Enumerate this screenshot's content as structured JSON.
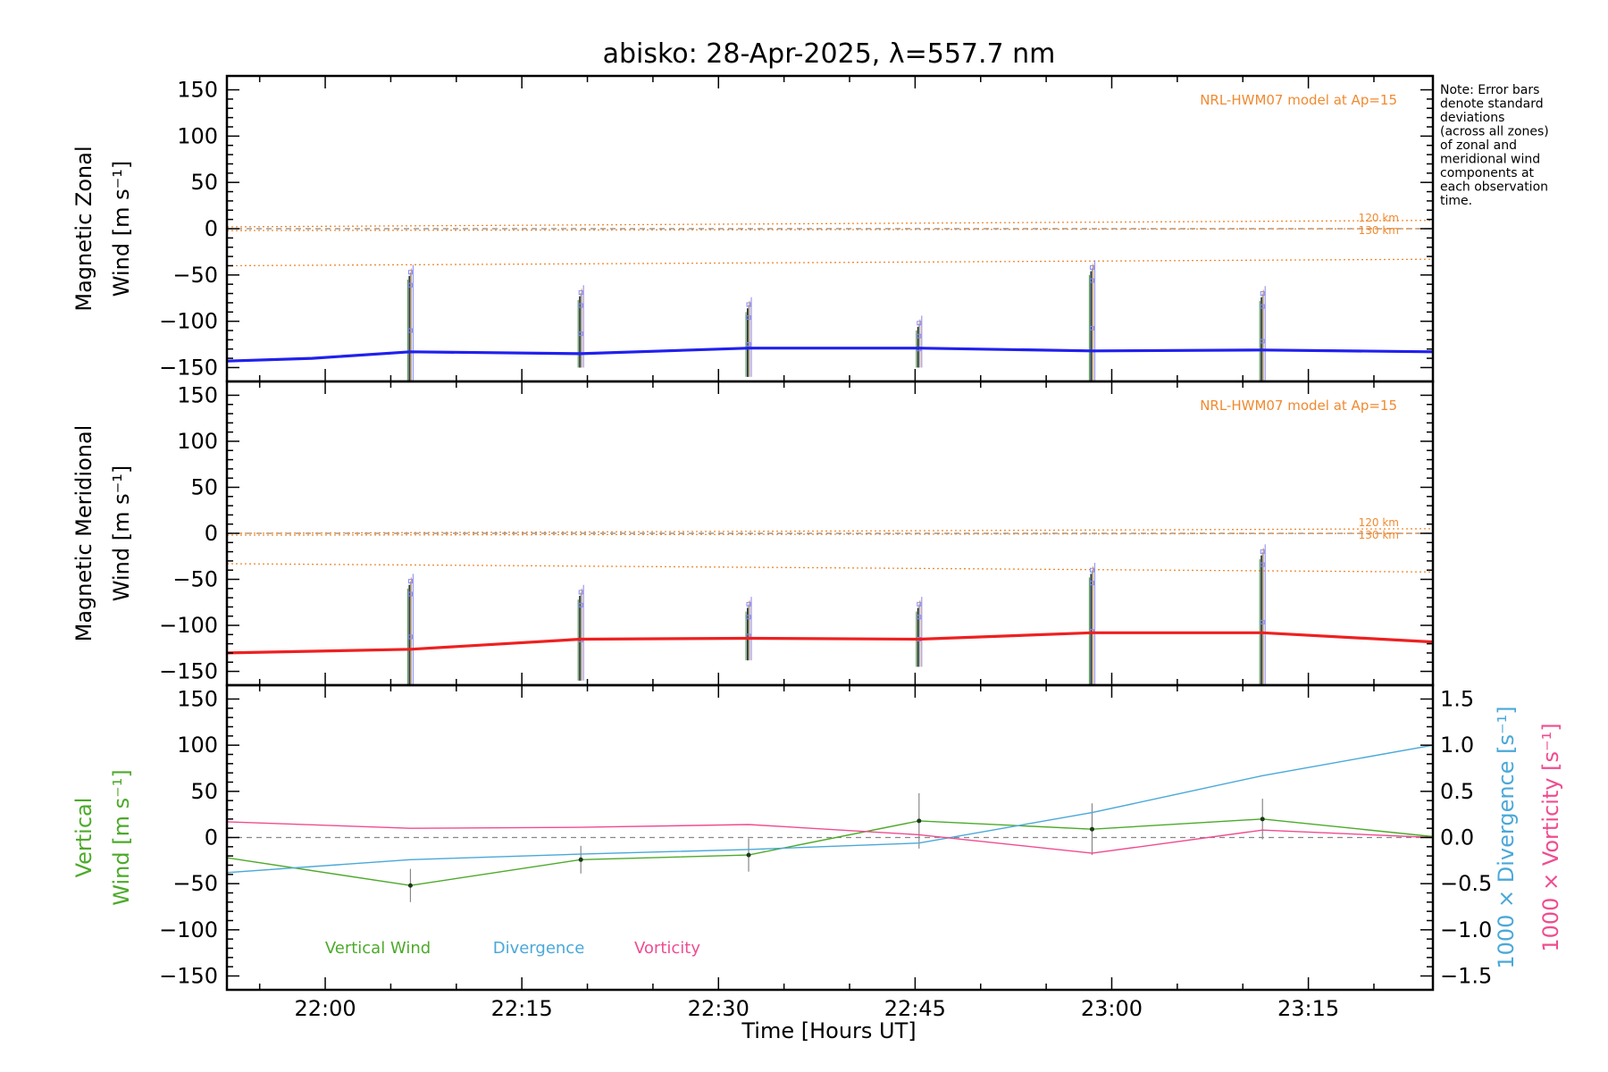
{
  "title": "abisko: 28-Apr-2025, λ=557.7 nm",
  "note": [
    "Note: Error bars",
    "denote standard",
    "deviations",
    "(across all zones)",
    "of zonal and",
    "meridional wind",
    "components at",
    "each observation",
    "time."
  ],
  "x_axis": {
    "label": "Time [Hours UT]",
    "ticks": [
      {
        "t": 1320,
        "label": "22:00"
      },
      {
        "t": 1335,
        "label": "22:15"
      },
      {
        "t": 1350,
        "label": "22:30"
      },
      {
        "t": 1365,
        "label": "22:45"
      },
      {
        "t": 1380,
        "label": "23:00"
      },
      {
        "t": 1395,
        "label": "23:15"
      }
    ],
    "range_minutes": [
      1312.5,
      1404.5
    ]
  },
  "colors": {
    "zonal": "#2020ee",
    "meridional": "#ee2020",
    "vertical": "#4caa2a",
    "divergence": "#4aa8d8",
    "vorticity": "#f04c90",
    "hwm": "#f08a30",
    "axes": "#000000"
  },
  "chart_data": [
    {
      "type": "line",
      "id": "zonal",
      "ylabel_lines": [
        "Magnetic Zonal",
        "Wind [m s⁻¹]"
      ],
      "ylim": [
        -165,
        165
      ],
      "yticks": [
        150,
        100,
        50,
        0,
        -50,
        -100,
        -150
      ],
      "model_label": "NRL-HWM07 model at Ap=15",
      "model_alt_labels": [
        "120 km",
        "130 km"
      ],
      "model_curves": [
        {
          "x": [
            1312.5,
            1404.5
          ],
          "y": [
            2,
            9
          ]
        },
        {
          "x": [
            1312.5,
            1404.5
          ],
          "y": [
            -2,
            0
          ]
        },
        {
          "x": [
            1312.5,
            1404.5
          ],
          "y": [
            -40,
            -33
          ]
        }
      ],
      "series": [
        {
          "x": [
            1312.5,
            1319,
            1326.5,
            1339.5,
            1352.3,
            1365.3,
            1378.5,
            1391.5,
            1404.5
          ],
          "y": [
            -143,
            -140,
            -133,
            -135,
            -129,
            -129,
            -132,
            -131,
            -133
          ]
        }
      ],
      "obs_x": [
        1326.5,
        1339.5,
        1352.3,
        1365.3,
        1378.5,
        1391.5
      ],
      "obs_err": [
        [
          -165,
          -55
        ],
        [
          -150,
          -77
        ],
        [
          -160,
          -90
        ],
        [
          -150,
          -110
        ],
        [
          -165,
          -50
        ],
        [
          -165,
          -78
        ]
      ]
    },
    {
      "type": "line",
      "id": "meridional",
      "ylabel_lines": [
        "Magnetic Meridional",
        "Wind [m s⁻¹]"
      ],
      "ylim": [
        -165,
        165
      ],
      "yticks": [
        150,
        100,
        50,
        0,
        -50,
        -100,
        -150
      ],
      "model_label": "NRL-HWM07 model at Ap=15",
      "model_alt_labels": [
        "120 km",
        "130 km"
      ],
      "model_curves": [
        {
          "x": [
            1312.5,
            1404.5
          ],
          "y": [
            0,
            5
          ]
        },
        {
          "x": [
            1312.5,
            1404.5
          ],
          "y": [
            -2,
            0
          ]
        },
        {
          "x": [
            1312.5,
            1404.5
          ],
          "y": [
            -33,
            -42
          ]
        }
      ],
      "series": [
        {
          "x": [
            1312.5,
            1326.5,
            1339.5,
            1352.3,
            1365.3,
            1378.5,
            1391.5,
            1404.5
          ],
          "y": [
            -130,
            -126,
            -115,
            -114,
            -115,
            -108,
            -108,
            -118
          ]
        }
      ],
      "obs_x": [
        1326.5,
        1339.5,
        1352.3,
        1365.3,
        1378.5,
        1391.5
      ],
      "obs_err": [
        [
          -165,
          -60
        ],
        [
          -160,
          -72
        ],
        [
          -138,
          -85
        ],
        [
          -145,
          -85
        ],
        [
          -165,
          -48
        ],
        [
          -165,
          -28
        ]
      ]
    },
    {
      "type": "line",
      "id": "vertical",
      "ylabel_lines": [
        "Vertical",
        "Wind [m s⁻¹]"
      ],
      "ylim": [
        -165,
        165
      ],
      "yticks": [
        150,
        100,
        50,
        0,
        -50,
        -100,
        -150
      ],
      "right_axis": {
        "ylim": [
          -1.65,
          1.65
        ],
        "ticks": [
          1.5,
          1.0,
          0.5,
          0.0,
          -0.5,
          -1.0,
          -1.5
        ],
        "labels": [
          "1000 × Divergence [s⁻¹]",
          "1000 × Vorticity [s⁻¹]"
        ]
      },
      "legend": [
        "Vertical Wind",
        "Divergence",
        "Vorticity"
      ],
      "series": [
        {
          "name": "Vertical Wind",
          "axis": "left",
          "x": [
            1312.5,
            1326.5,
            1339.5,
            1352.3,
            1365.3,
            1378.5,
            1391.5,
            1404.5
          ],
          "y": [
            -22,
            -52,
            -24,
            -19,
            18,
            9,
            20,
            1
          ],
          "err": [
            null,
            18,
            15,
            18,
            30,
            28,
            22,
            null
          ]
        },
        {
          "name": "Divergence",
          "axis": "right",
          "x": [
            1312.5,
            1326.5,
            1339.5,
            1352.3,
            1365.3,
            1378.5,
            1391.5,
            1404.5
          ],
          "y": [
            -0.38,
            -0.24,
            -0.18,
            -0.13,
            -0.06,
            0.27,
            0.67,
            1.0
          ]
        },
        {
          "name": "Vorticity",
          "axis": "right",
          "x": [
            1312.5,
            1326.5,
            1339.5,
            1352.3,
            1365.3,
            1378.5,
            1391.5,
            1404.5
          ],
          "y": [
            0.17,
            0.1,
            0.11,
            0.14,
            0.03,
            -0.17,
            0.08,
            0.0
          ]
        }
      ]
    }
  ]
}
